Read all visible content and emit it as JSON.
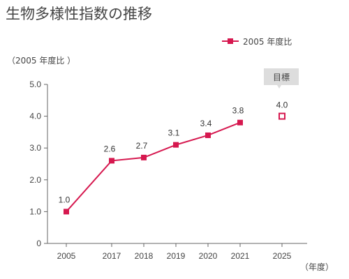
{
  "chart_data": {
    "type": "line",
    "title": "生物多様性指数の推移",
    "ylabel": "（2005 年度比 ）",
    "xlabel": "（年度）",
    "ylim": [
      0,
      5
    ],
    "yticks": [
      "0",
      "1.0",
      "2.0",
      "3.0",
      "4.0",
      "5.0"
    ],
    "categories": [
      "2005",
      "2017",
      "2018",
      "2019",
      "2020",
      "2021",
      "2025"
    ],
    "grid": false,
    "legend_position": "top-right",
    "series": [
      {
        "name": "2005 年度比",
        "color": "#d6184f",
        "points": [
          {
            "x": "2005",
            "y": 1.0,
            "label": "1.0"
          },
          {
            "x": "2017",
            "y": 2.6,
            "label": "2.6"
          },
          {
            "x": "2018",
            "y": 2.7,
            "label": "2.7"
          },
          {
            "x": "2019",
            "y": 3.1,
            "label": "3.1"
          },
          {
            "x": "2020",
            "y": 3.4,
            "label": "3.4"
          },
          {
            "x": "2021",
            "y": 3.8,
            "label": "3.8"
          }
        ]
      }
    ],
    "target": {
      "x": "2025",
      "y": 4.0,
      "label": "4.0",
      "callout": "目標",
      "color": "#d6184f",
      "callout_color": "#dddddd"
    }
  }
}
